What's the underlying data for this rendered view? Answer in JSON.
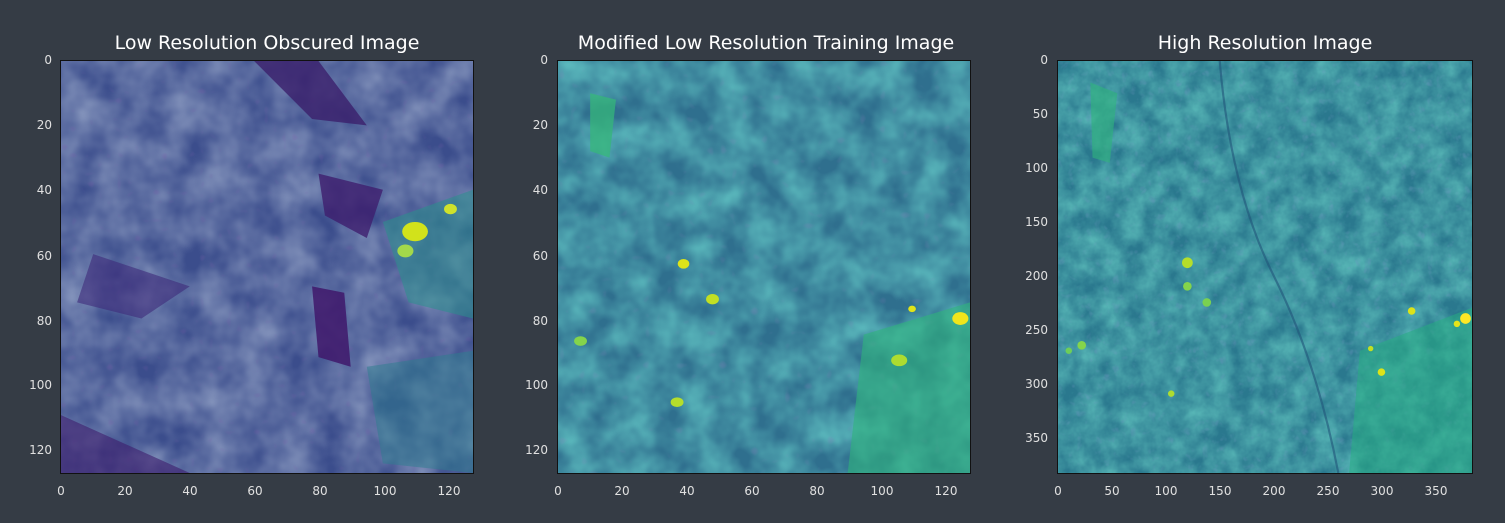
{
  "panels": [
    {
      "title": "Low Resolution Obscured Image",
      "x_ticks": [
        "0",
        "20",
        "40",
        "60",
        "80",
        "100",
        "120"
      ],
      "y_ticks": [
        "0",
        "20",
        "40",
        "60",
        "80",
        "100",
        "120"
      ],
      "axis_max": 128,
      "palette": "viridis-dark"
    },
    {
      "title": "Modified Low Resolution Training Image",
      "x_ticks": [
        "0",
        "20",
        "40",
        "60",
        "80",
        "100",
        "120"
      ],
      "y_ticks": [
        "0",
        "20",
        "40",
        "60",
        "80",
        "100",
        "120"
      ],
      "axis_max": 128,
      "palette": "viridis-mid"
    },
    {
      "title": "High Resolution Image",
      "x_ticks": [
        "0",
        "50",
        "100",
        "150",
        "200",
        "250",
        "300",
        "350"
      ],
      "y_ticks": [
        "0",
        "50",
        "100",
        "150",
        "200",
        "250",
        "300",
        "350"
      ],
      "axis_max": 384,
      "palette": "viridis-bright"
    }
  ]
}
